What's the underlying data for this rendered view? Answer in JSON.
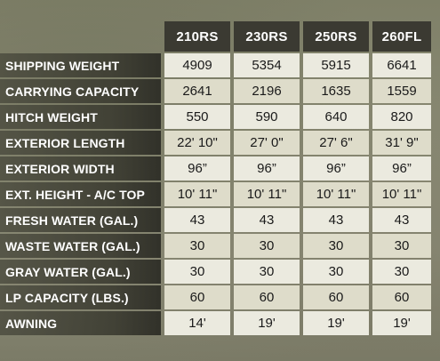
{
  "models": [
    "210RS",
    "230RS",
    "250RS",
    "260FL"
  ],
  "rows": [
    {
      "label": "SHIPPING WEIGHT",
      "values": [
        "4909",
        "5354",
        "5915",
        "6641"
      ]
    },
    {
      "label": "CARRYING CAPACITY",
      "values": [
        "2641",
        "2196",
        "1635",
        "1559"
      ]
    },
    {
      "label": "HITCH WEIGHT",
      "values": [
        "550",
        "590",
        "640",
        "820"
      ]
    },
    {
      "label": "EXTERIOR LENGTH",
      "values": [
        "22' 10\"",
        "27' 0\"",
        "27' 6\"",
        "31' 9\""
      ]
    },
    {
      "label": "EXTERIOR WIDTH",
      "values": [
        "96”",
        "96”",
        "96”",
        "96”"
      ]
    },
    {
      "label": "EXT. HEIGHT - A/C TOP",
      "values": [
        "10' 11\"",
        "10' 11\"",
        "10' 11\"",
        "10' 11\""
      ]
    },
    {
      "label": "FRESH WATER (GAL.)",
      "values": [
        "43",
        "43",
        "43",
        "43"
      ]
    },
    {
      "label": "WASTE WATER (GAL.)",
      "values": [
        "30",
        "30",
        "30",
        "30"
      ]
    },
    {
      "label": "GRAY WATER (GAL.)",
      "values": [
        "30",
        "30",
        "30",
        "30"
      ]
    },
    {
      "label": "LP CAPACITY (LBS.)",
      "values": [
        "60",
        "60",
        "60",
        "60"
      ]
    },
    {
      "label": "AWNING",
      "values": [
        "14'",
        "19'",
        "19'",
        "19'"
      ]
    }
  ]
}
